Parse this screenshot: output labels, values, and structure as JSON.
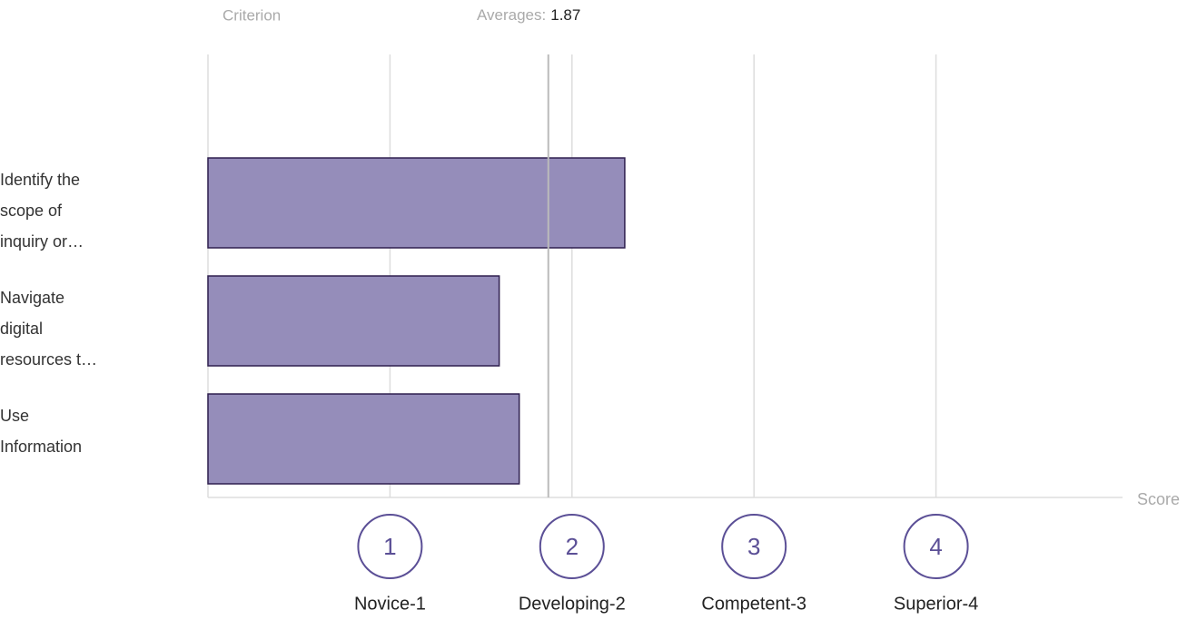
{
  "chart_data": {
    "type": "barh",
    "category_axis_label": "Criterion",
    "average_label": "Averages:",
    "average": 1.87,
    "categories": [
      "Identify the scope of inquiry or…",
      "Navigate digital resources t…",
      "Use Information"
    ],
    "values": [
      2.29,
      1.6,
      1.71
    ],
    "color": "#958dba",
    "edge_color": "#2e1f4f",
    "xlabel": "Score",
    "xlim": [
      0,
      5
    ],
    "xticks": [
      1,
      2,
      3,
      4
    ],
    "tick_names": [
      "Novice-1",
      "Developing-2",
      "Competent-3",
      "Superior-4"
    ],
    "grid": true
  }
}
